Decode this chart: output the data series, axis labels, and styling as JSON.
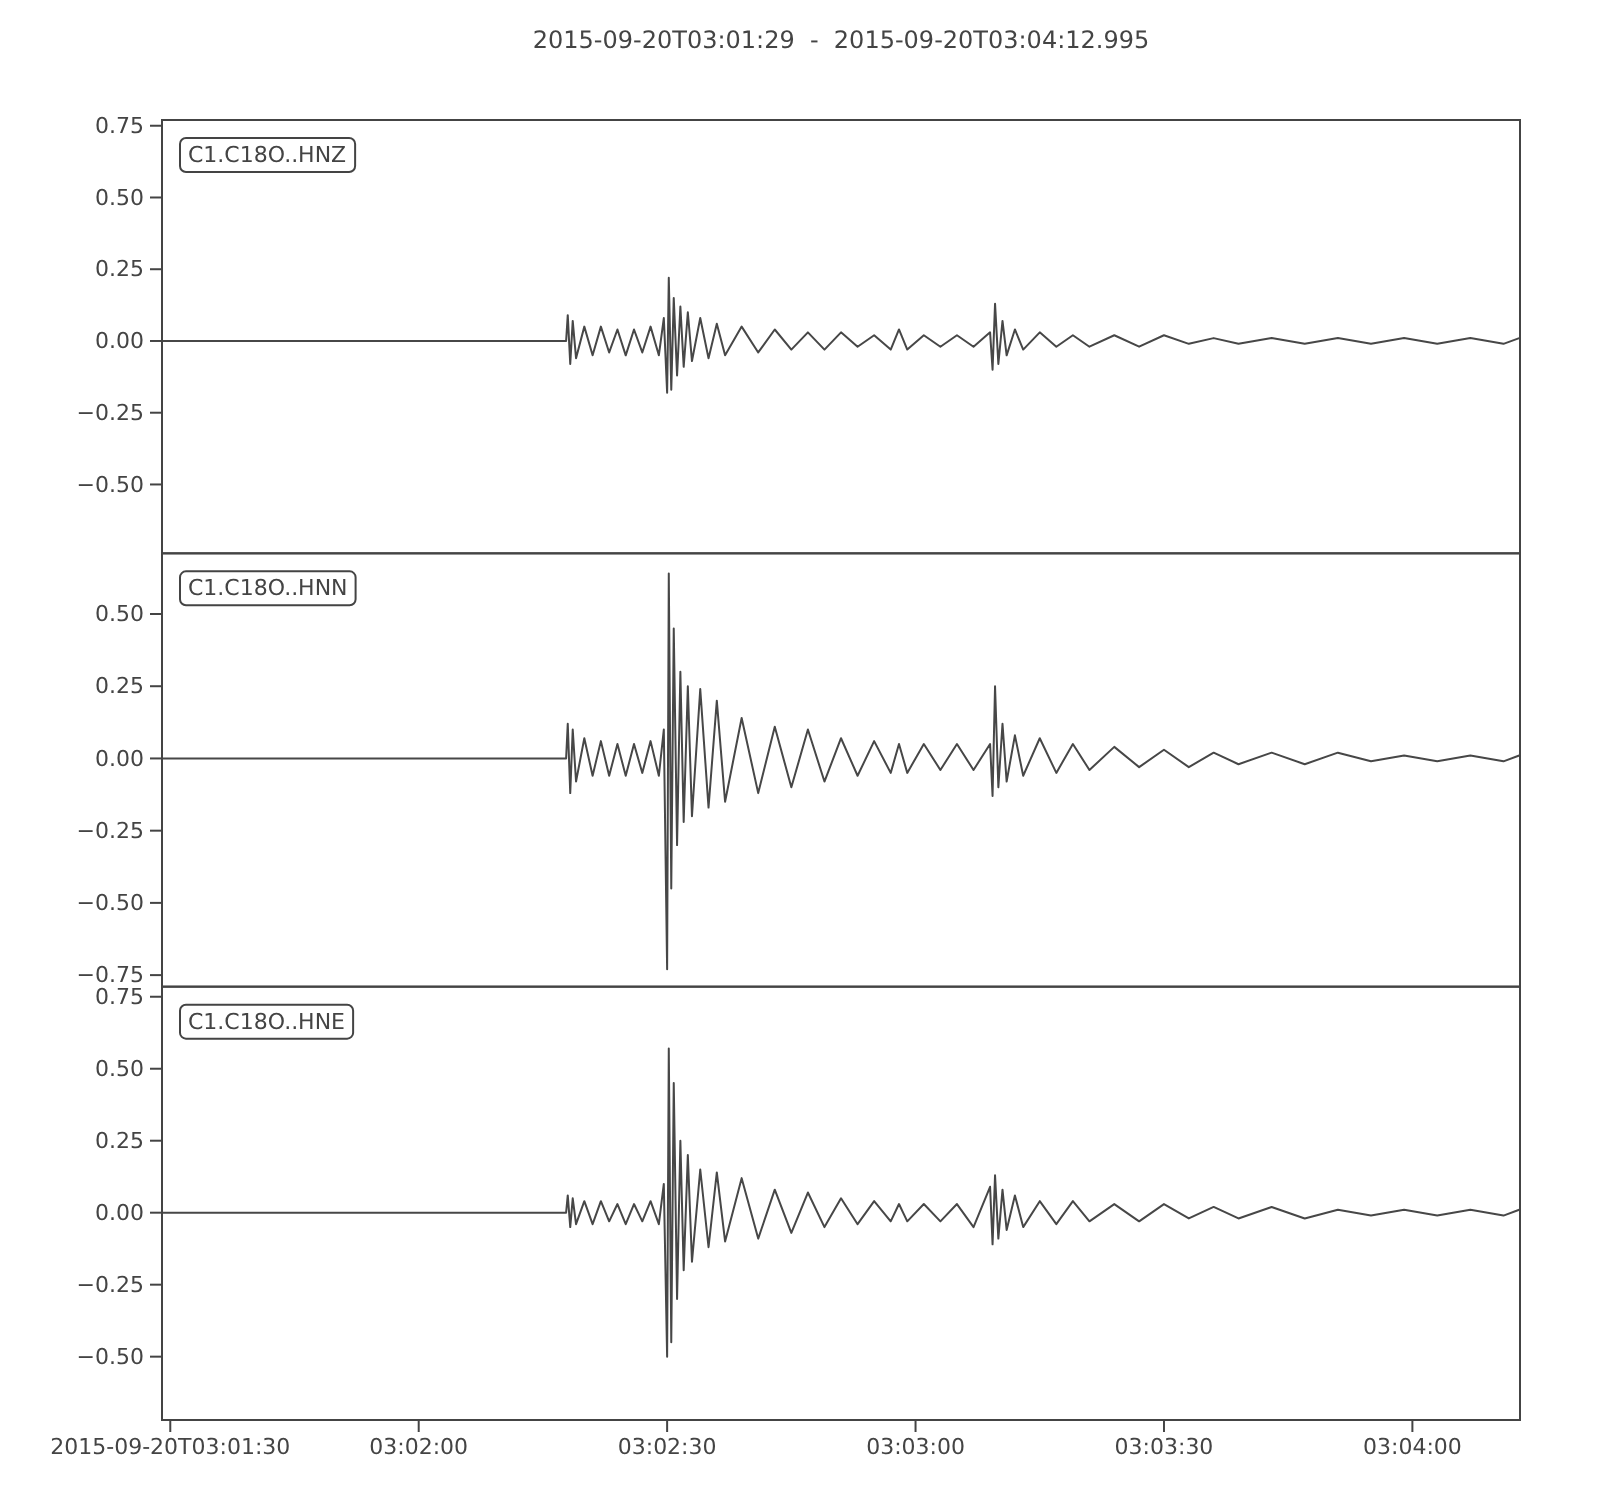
{
  "chart_data": [
    {
      "type": "line",
      "title": "2015-09-20T03:01:29  -  2015-09-20T03:04:12.995",
      "annotations": [
        "C1.C18O..HNZ"
      ],
      "xlim": [
        "2015-09-20T03:01:29",
        "2015-09-20T03:04:12.995"
      ],
      "ylim": [
        -0.74,
        0.77
      ],
      "yticks": [
        {
          "value": -0.5,
          "label": "−0.50"
        },
        -0.25,
        {
          "value": 0,
          "label": "0.00"
        },
        0.25,
        {
          "value": 0.5,
          "label": "0.50"
        },
        0.75
      ],
      "tick_labels": "y",
      "grid": false,
      "x": [
        "2015-09-20T03:01:29",
        "2015-09-20T03:02:17.8",
        "2015-09-20T03:02:18",
        "2015-09-20T03:02:18.3",
        "2015-09-20T03:02:18.6",
        "2015-09-20T03:02:19",
        "2015-09-20T03:02:20",
        "2015-09-20T03:02:21",
        "2015-09-20T03:02:22",
        "2015-09-20T03:02:23",
        "2015-09-20T03:02:24",
        "2015-09-20T03:02:25",
        "2015-09-20T03:02:26",
        "2015-09-20T03:02:27",
        "2015-09-20T03:02:28",
        "2015-09-20T03:02:29",
        "2015-09-20T03:02:29.6",
        "2015-09-20T03:02:30",
        "2015-09-20T03:02:30.2",
        "2015-09-20T03:02:30.5",
        "2015-09-20T03:02:30.8",
        "2015-09-20T03:02:31.2",
        "2015-09-20T03:02:31.6",
        "2015-09-20T03:02:32",
        "2015-09-20T03:02:32.5",
        "2015-09-20T03:02:33",
        "2015-09-20T03:02:34",
        "2015-09-20T03:02:35",
        "2015-09-20T03:02:36",
        "2015-09-20T03:02:37",
        "2015-09-20T03:02:39",
        "2015-09-20T03:02:41",
        "2015-09-20T03:02:43",
        "2015-09-20T03:02:45",
        "2015-09-20T03:02:47",
        "2015-09-20T03:02:49",
        "2015-09-20T03:02:51",
        "2015-09-20T03:02:53",
        "2015-09-20T03:02:55",
        "2015-09-20T03:02:57",
        "2015-09-20T03:02:58",
        "2015-09-20T03:02:59",
        "2015-09-20T03:03:01",
        "2015-09-20T03:03:03",
        "2015-09-20T03:03:05",
        "2015-09-20T03:03:07",
        "2015-09-20T03:03:09",
        "2015-09-20T03:03:09.3",
        "2015-09-20T03:03:09.6",
        "2015-09-20T03:03:10",
        "2015-09-20T03:03:10.5",
        "2015-09-20T03:03:11",
        "2015-09-20T03:03:12",
        "2015-09-20T03:03:13",
        "2015-09-20T03:03:15",
        "2015-09-20T03:03:17",
        "2015-09-20T03:03:19",
        "2015-09-20T03:03:21",
        "2015-09-20T03:03:24",
        "2015-09-20T03:03:27",
        "2015-09-20T03:03:30",
        "2015-09-20T03:03:33",
        "2015-09-20T03:03:36",
        "2015-09-20T03:03:39",
        "2015-09-20T03:03:43",
        "2015-09-20T03:03:47",
        "2015-09-20T03:03:51",
        "2015-09-20T03:03:55",
        "2015-09-20T03:03:59",
        "2015-09-20T03:04:03",
        "2015-09-20T03:04:07",
        "2015-09-20T03:04:11",
        "2015-09-20T03:04:12.9"
      ],
      "series": [
        {
          "color": "#474747",
          "values": [
            0,
            0,
            0.09,
            -0.08,
            0.07,
            -0.06,
            0.05,
            -0.05,
            0.05,
            -0.04,
            0.04,
            -0.05,
            0.04,
            -0.04,
            0.05,
            -0.05,
            0.08,
            -0.18,
            0.22,
            -0.17,
            0.15,
            -0.12,
            0.12,
            -0.09,
            0.1,
            -0.07,
            0.08,
            -0.06,
            0.06,
            -0.05,
            0.05,
            -0.04,
            0.04,
            -0.03,
            0.03,
            -0.03,
            0.03,
            -0.02,
            0.02,
            -0.03,
            0.04,
            -0.03,
            0.02,
            -0.02,
            0.02,
            -0.02,
            0.03,
            -0.1,
            0.13,
            -0.08,
            0.07,
            -0.05,
            0.04,
            -0.03,
            0.03,
            -0.02,
            0.02,
            -0.02,
            0.02,
            -0.02,
            0.02,
            -0.01,
            0.01,
            -0.01,
            0.01,
            -0.01,
            0.01,
            -0.01,
            0.01,
            -0.01,
            0.01,
            -0.01,
            0.01
          ]
        }
      ]
    },
    {
      "type": "line",
      "annotations": [
        "C1.C18O..HNN"
      ],
      "xlim": [
        "2015-09-20T03:01:29",
        "2015-09-20T03:04:12.995"
      ],
      "ylim": [
        -0.79,
        0.71
      ],
      "yticks": [
        -0.75,
        {
          "value": -0.5,
          "label": "−0.50"
        },
        -0.25,
        {
          "value": 0,
          "label": "0.00"
        },
        0.25,
        {
          "value": 0.5,
          "label": "0.50"
        }
      ],
      "tick_labels": "y",
      "grid": false,
      "x": [
        "2015-09-20T03:01:29",
        "2015-09-20T03:02:17.8",
        "2015-09-20T03:02:18",
        "2015-09-20T03:02:18.3",
        "2015-09-20T03:02:18.6",
        "2015-09-20T03:02:19",
        "2015-09-20T03:02:20",
        "2015-09-20T03:02:21",
        "2015-09-20T03:02:22",
        "2015-09-20T03:02:23",
        "2015-09-20T03:02:24",
        "2015-09-20T03:02:25",
        "2015-09-20T03:02:26",
        "2015-09-20T03:02:27",
        "2015-09-20T03:02:28",
        "2015-09-20T03:02:29",
        "2015-09-20T03:02:29.6",
        "2015-09-20T03:02:30",
        "2015-09-20T03:02:30.2",
        "2015-09-20T03:02:30.5",
        "2015-09-20T03:02:30.8",
        "2015-09-20T03:02:31.2",
        "2015-09-20T03:02:31.6",
        "2015-09-20T03:02:32",
        "2015-09-20T03:02:32.5",
        "2015-09-20T03:02:33",
        "2015-09-20T03:02:34",
        "2015-09-20T03:02:35",
        "2015-09-20T03:02:36",
        "2015-09-20T03:02:37",
        "2015-09-20T03:02:39",
        "2015-09-20T03:02:41",
        "2015-09-20T03:02:43",
        "2015-09-20T03:02:45",
        "2015-09-20T03:02:47",
        "2015-09-20T03:02:49",
        "2015-09-20T03:02:51",
        "2015-09-20T03:02:53",
        "2015-09-20T03:02:55",
        "2015-09-20T03:02:57",
        "2015-09-20T03:02:58",
        "2015-09-20T03:02:59",
        "2015-09-20T03:03:01",
        "2015-09-20T03:03:03",
        "2015-09-20T03:03:05",
        "2015-09-20T03:03:07",
        "2015-09-20T03:03:09",
        "2015-09-20T03:03:09.3",
        "2015-09-20T03:03:09.6",
        "2015-09-20T03:03:10",
        "2015-09-20T03:03:10.5",
        "2015-09-20T03:03:11",
        "2015-09-20T03:03:12",
        "2015-09-20T03:03:13",
        "2015-09-20T03:03:15",
        "2015-09-20T03:03:17",
        "2015-09-20T03:03:19",
        "2015-09-20T03:03:21",
        "2015-09-20T03:03:24",
        "2015-09-20T03:03:27",
        "2015-09-20T03:03:30",
        "2015-09-20T03:03:33",
        "2015-09-20T03:03:36",
        "2015-09-20T03:03:39",
        "2015-09-20T03:03:43",
        "2015-09-20T03:03:47",
        "2015-09-20T03:03:51",
        "2015-09-20T03:03:55",
        "2015-09-20T03:03:59",
        "2015-09-20T03:04:03",
        "2015-09-20T03:04:07",
        "2015-09-20T03:04:11",
        "2015-09-20T03:04:12.9"
      ],
      "series": [
        {
          "color": "#474747",
          "values": [
            0,
            0,
            0.12,
            -0.12,
            0.1,
            -0.08,
            0.07,
            -0.06,
            0.06,
            -0.06,
            0.05,
            -0.06,
            0.05,
            -0.05,
            0.06,
            -0.06,
            0.1,
            -0.73,
            0.64,
            -0.45,
            0.45,
            -0.3,
            0.3,
            -0.22,
            0.25,
            -0.2,
            0.24,
            -0.17,
            0.2,
            -0.15,
            0.14,
            -0.12,
            0.11,
            -0.1,
            0.1,
            -0.08,
            0.07,
            -0.06,
            0.06,
            -0.05,
            0.05,
            -0.05,
            0.05,
            -0.04,
            0.05,
            -0.04,
            0.05,
            -0.13,
            0.25,
            -0.1,
            0.12,
            -0.08,
            0.08,
            -0.06,
            0.07,
            -0.05,
            0.05,
            -0.04,
            0.04,
            -0.03,
            0.03,
            -0.03,
            0.02,
            -0.02,
            0.02,
            -0.02,
            0.02,
            -0.01,
            0.01,
            -0.01,
            0.01,
            -0.01,
            0.01
          ]
        }
      ]
    },
    {
      "type": "line",
      "annotations": [
        "C1.C18O..HNE"
      ],
      "xlim": [
        "2015-09-20T03:01:29",
        "2015-09-20T03:04:12.995"
      ],
      "ylim": [
        -0.72,
        0.785
      ],
      "yticks": [
        {
          "value": -0.5,
          "label": "−0.50"
        },
        -0.25,
        {
          "value": 0,
          "label": "0.00"
        },
        0.25,
        {
          "value": 0.5,
          "label": "0.50"
        },
        0.75
      ],
      "xticks": [
        {
          "value": "2015-09-20T03:01:30",
          "label": "2015-09-20T03:01:30"
        },
        {
          "value": "2015-09-20T03:02:00",
          "label": "03:02:00"
        },
        {
          "value": "2015-09-20T03:02:30",
          "label": "03:02:30"
        },
        {
          "value": "2015-09-20T03:03:00",
          "label": "03:03:00"
        },
        {
          "value": "2015-09-20T03:03:30",
          "label": "03:03:30"
        },
        {
          "value": "2015-09-20T03:04:00",
          "label": "03:04:00"
        }
      ],
      "grid": false,
      "x": [
        "2015-09-20T03:01:29",
        "2015-09-20T03:02:17.8",
        "2015-09-20T03:02:18",
        "2015-09-20T03:02:18.3",
        "2015-09-20T03:02:18.6",
        "2015-09-20T03:02:19",
        "2015-09-20T03:02:20",
        "2015-09-20T03:02:21",
        "2015-09-20T03:02:22",
        "2015-09-20T03:02:23",
        "2015-09-20T03:02:24",
        "2015-09-20T03:02:25",
        "2015-09-20T03:02:26",
        "2015-09-20T03:02:27",
        "2015-09-20T03:02:28",
        "2015-09-20T03:02:29",
        "2015-09-20T03:02:29.6",
        "2015-09-20T03:02:30",
        "2015-09-20T03:02:30.2",
        "2015-09-20T03:02:30.5",
        "2015-09-20T03:02:30.8",
        "2015-09-20T03:02:31.2",
        "2015-09-20T03:02:31.6",
        "2015-09-20T03:02:32",
        "2015-09-20T03:02:32.5",
        "2015-09-20T03:02:33",
        "2015-09-20T03:02:34",
        "2015-09-20T03:02:35",
        "2015-09-20T03:02:36",
        "2015-09-20T03:02:37",
        "2015-09-20T03:02:39",
        "2015-09-20T03:02:41",
        "2015-09-20T03:02:43",
        "2015-09-20T03:02:45",
        "2015-09-20T03:02:47",
        "2015-09-20T03:02:49",
        "2015-09-20T03:02:51",
        "2015-09-20T03:02:53",
        "2015-09-20T03:02:55",
        "2015-09-20T03:02:57",
        "2015-09-20T03:02:58",
        "2015-09-20T03:02:59",
        "2015-09-20T03:03:01",
        "2015-09-20T03:03:03",
        "2015-09-20T03:03:05",
        "2015-09-20T03:03:07",
        "2015-09-20T03:03:09",
        "2015-09-20T03:03:09.3",
        "2015-09-20T03:03:09.6",
        "2015-09-20T03:03:10",
        "2015-09-20T03:03:10.5",
        "2015-09-20T03:03:11",
        "2015-09-20T03:03:12",
        "2015-09-20T03:03:13",
        "2015-09-20T03:03:15",
        "2015-09-20T03:03:17",
        "2015-09-20T03:03:19",
        "2015-09-20T03:03:21",
        "2015-09-20T03:03:24",
        "2015-09-20T03:03:27",
        "2015-09-20T03:03:30",
        "2015-09-20T03:03:33",
        "2015-09-20T03:03:36",
        "2015-09-20T03:03:39",
        "2015-09-20T03:03:43",
        "2015-09-20T03:03:47",
        "2015-09-20T03:03:51",
        "2015-09-20T03:03:55",
        "2015-09-20T03:03:59",
        "2015-09-20T03:04:03",
        "2015-09-20T03:04:07",
        "2015-09-20T03:04:11",
        "2015-09-20T03:04:12.9"
      ],
      "series": [
        {
          "color": "#474747",
          "values": [
            0,
            0,
            0.06,
            -0.05,
            0.05,
            -0.04,
            0.04,
            -0.04,
            0.04,
            -0.03,
            0.03,
            -0.04,
            0.03,
            -0.03,
            0.04,
            -0.04,
            0.1,
            -0.5,
            0.57,
            -0.45,
            0.45,
            -0.3,
            0.25,
            -0.2,
            0.2,
            -0.17,
            0.15,
            -0.12,
            0.14,
            -0.1,
            0.12,
            -0.09,
            0.08,
            -0.07,
            0.07,
            -0.05,
            0.05,
            -0.04,
            0.04,
            -0.03,
            0.03,
            -0.03,
            0.03,
            -0.03,
            0.03,
            -0.05,
            0.09,
            -0.11,
            0.13,
            -0.09,
            0.08,
            -0.06,
            0.06,
            -0.05,
            0.04,
            -0.04,
            0.04,
            -0.03,
            0.03,
            -0.03,
            0.03,
            -0.02,
            0.02,
            -0.02,
            0.02,
            -0.02,
            0.01,
            -0.01,
            0.01,
            -0.01,
            0.01,
            -0.01,
            0.01
          ]
        }
      ]
    }
  ]
}
